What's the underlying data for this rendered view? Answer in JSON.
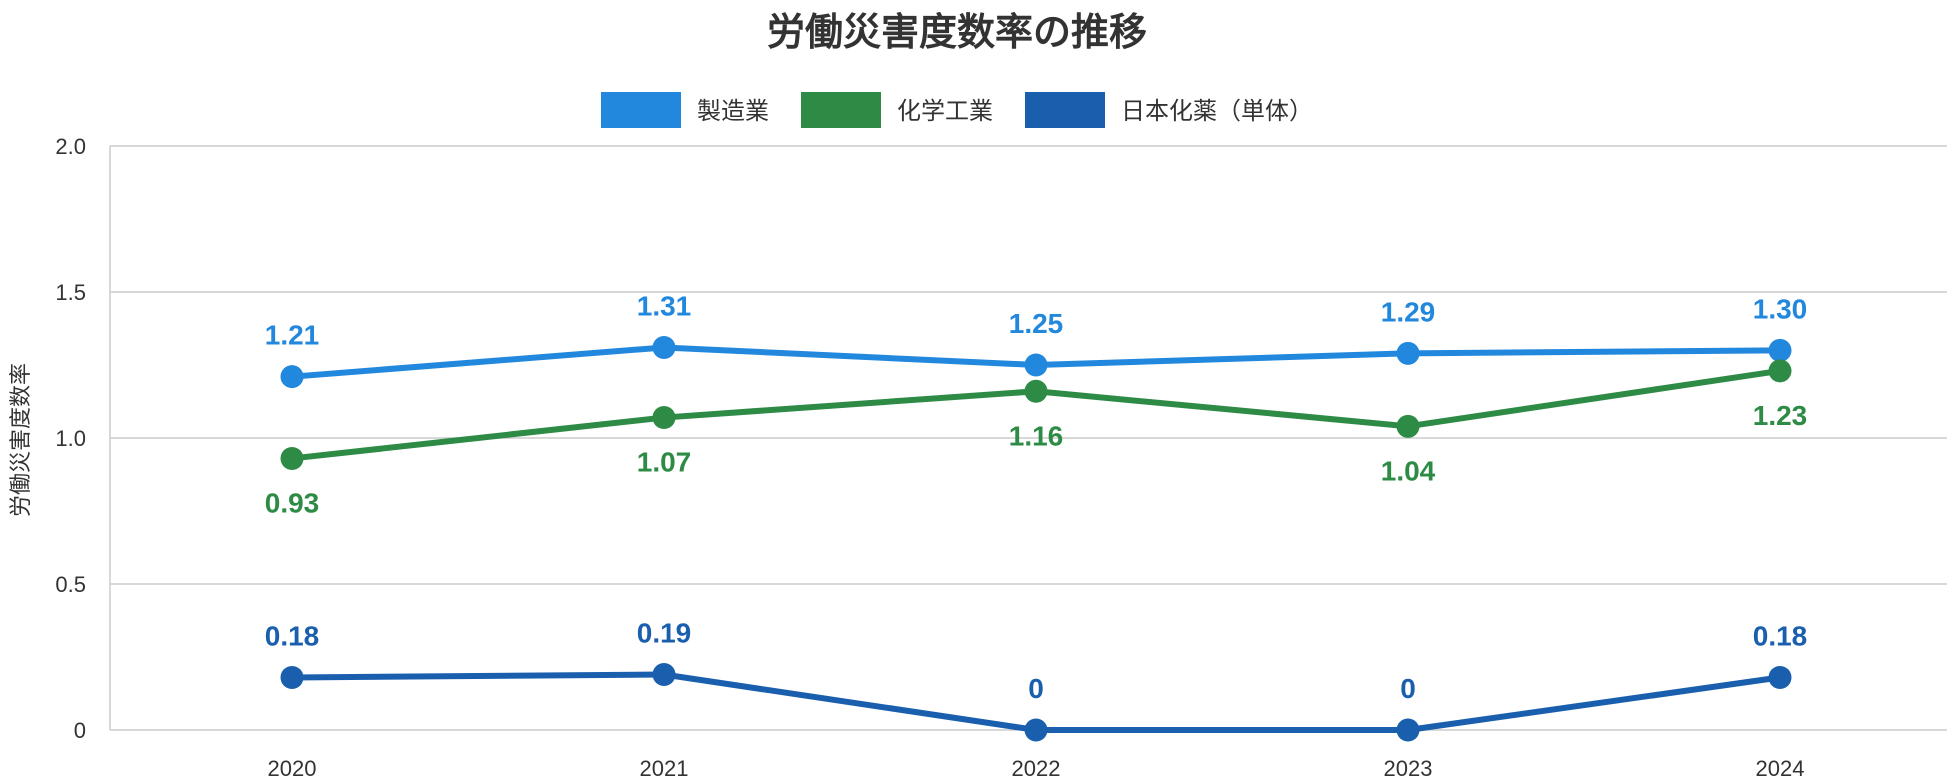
{
  "chart_data": {
    "type": "line",
    "title": "労働災害度数率の推移",
    "ylabel": "労働災害度数率",
    "xlabel": "",
    "categories": [
      "2020",
      "2021",
      "2022",
      "2023",
      "2024"
    ],
    "ylim": [
      0,
      2.0
    ],
    "y_ticks": [
      {
        "value": 0,
        "label": "0"
      },
      {
        "value": 0.5,
        "label": "0.5"
      },
      {
        "value": 1.0,
        "label": "1.0"
      },
      {
        "value": 1.5,
        "label": "1.5"
      },
      {
        "value": 2.0,
        "label": "2.0"
      }
    ],
    "grid": true,
    "legend_position": "top-center",
    "series": [
      {
        "name": "製造業",
        "color": "#2288DD",
        "values": [
          1.21,
          1.31,
          1.25,
          1.29,
          1.3
        ],
        "labels": [
          "1.21",
          "1.31",
          "1.25",
          "1.29",
          "1.30"
        ],
        "label_position": [
          "above",
          "above",
          "above",
          "above",
          "above"
        ]
      },
      {
        "name": "化学工業",
        "color": "#2E8B45",
        "values": [
          0.93,
          1.07,
          1.16,
          1.04,
          1.23
        ],
        "labels": [
          "0.93",
          "1.07",
          "1.16",
          "1.04",
          "1.23"
        ],
        "label_position": [
          "below",
          "below",
          "below",
          "below",
          "below"
        ]
      },
      {
        "name": "日本化薬（単体）",
        "color": "#1A5FAD",
        "values": [
          0.18,
          0.19,
          0,
          0,
          0.18
        ],
        "labels": [
          "0.18",
          "0.19",
          "0",
          "0",
          "0.18"
        ],
        "label_position": [
          "above",
          "above",
          "above",
          "above",
          "above"
        ]
      }
    ]
  }
}
